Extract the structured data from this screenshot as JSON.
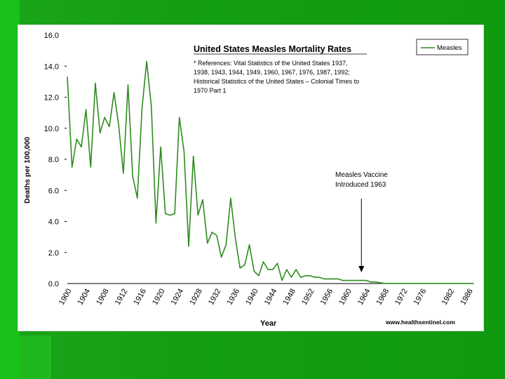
{
  "chart_data": {
    "type": "line",
    "title": "United States Measles Mortality Rates",
    "reference_note": [
      "* References: Vital Statistics of the United States 1937,",
      "1938, 1943, 1944, 1949, 1960, 1967, 1976, 1987, 1992;",
      "Historical Statistics of the United States – Colonial Times to",
      "1970 Part 1"
    ],
    "annotation": [
      "Measles Vaccine",
      "Introduced 1963"
    ],
    "annotation_x": 1963,
    "xlabel": "Year",
    "ylabel": "Deaths per 100,000",
    "source": "www.healthsentinel.com",
    "legend": {
      "label": "Measles",
      "position": "top-right"
    },
    "xlim": [
      1900,
      1987
    ],
    "ylim": [
      0,
      16
    ],
    "y_ticks": [
      "0.0",
      "2.0",
      "4.0",
      "6.0",
      "8.0",
      "10.0",
      "12.0",
      "14.0",
      "16.0"
    ],
    "y_tick_values": [
      0,
      2,
      4,
      6,
      8,
      10,
      12,
      14,
      16
    ],
    "x_ticks": [
      "1900",
      "1904",
      "1908",
      "1912",
      "1916",
      "1920",
      "1924",
      "1928",
      "1932",
      "1936",
      "1940",
      "1944",
      "1948",
      "1952",
      "1956",
      "1960",
      "1964",
      "1968",
      "1972",
      "1976",
      "1982",
      "1986"
    ],
    "x_tick_values": [
      1900,
      1904,
      1908,
      1912,
      1916,
      1920,
      1924,
      1928,
      1932,
      1936,
      1940,
      1944,
      1948,
      1952,
      1956,
      1960,
      1964,
      1968,
      1972,
      1976,
      1982,
      1986
    ],
    "grid": false,
    "series": [
      {
        "name": "Measles",
        "color": "#2e8b1e",
        "x": [
          1900,
          1901,
          1902,
          1903,
          1904,
          1905,
          1906,
          1907,
          1908,
          1909,
          1910,
          1911,
          1912,
          1913,
          1914,
          1915,
          1916,
          1917,
          1918,
          1919,
          1920,
          1921,
          1922,
          1923,
          1924,
          1925,
          1926,
          1927,
          1928,
          1929,
          1930,
          1931,
          1932,
          1933,
          1934,
          1935,
          1936,
          1937,
          1938,
          1939,
          1940,
          1941,
          1942,
          1943,
          1944,
          1945,
          1946,
          1947,
          1948,
          1949,
          1950,
          1951,
          1952,
          1953,
          1954,
          1955,
          1956,
          1957,
          1958,
          1959,
          1960,
          1961,
          1962,
          1963,
          1964,
          1965,
          1966,
          1967,
          1968,
          1969,
          1970,
          1971,
          1972,
          1973,
          1974,
          1975,
          1976,
          1977,
          1978,
          1979,
          1980,
          1981,
          1982,
          1983,
          1984,
          1985,
          1986,
          1987
        ],
        "values": [
          13.3,
          7.5,
          9.3,
          8.8,
          11.2,
          7.5,
          12.9,
          9.7,
          10.7,
          10.1,
          12.3,
          10.2,
          7.1,
          12.8,
          6.9,
          5.5,
          11.3,
          14.3,
          11.4,
          3.9,
          8.8,
          4.5,
          4.4,
          4.5,
          10.7,
          8.5,
          2.4,
          8.2,
          4.4,
          5.4,
          2.6,
          3.3,
          3.1,
          1.7,
          2.5,
          5.5,
          2.9,
          1.0,
          1.2,
          2.5,
          0.8,
          0.5,
          1.4,
          0.9,
          0.9,
          1.3,
          0.2,
          0.9,
          0.4,
          0.9,
          0.4,
          0.5,
          0.5,
          0.4,
          0.4,
          0.3,
          0.3,
          0.3,
          0.3,
          0.2,
          0.2,
          0.2,
          0.2,
          0.2,
          0.2,
          0.1,
          0.1,
          0.05,
          0.01,
          0.01,
          0.01,
          0.01,
          0.01,
          0.01,
          0.01,
          0.01,
          0.01,
          0.01,
          0.01,
          0.01,
          0.01,
          0.01,
          0.01,
          0.01,
          0.01,
          0.01,
          0.01,
          0.01
        ]
      }
    ]
  }
}
